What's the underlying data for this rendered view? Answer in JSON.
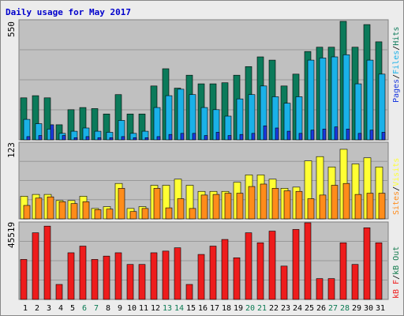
{
  "title": "Daily usage for May 2017",
  "colors": {
    "title": "#0000cc",
    "hits": "#0b7a5a",
    "files": "#1ab1e8",
    "pages": "#1a3adf",
    "visits": "#ffff33",
    "sites": "#ff8c1a",
    "kb_out": "#147c4e",
    "kb_f": "#ee1c1c",
    "weekend_day": "#0a7a52",
    "weekday_day": "#000000",
    "panel_bg": "#c0c0c0",
    "frame_bg": "#ececec"
  },
  "legends": {
    "hits": "Hits",
    "files": "Files",
    "pages": "Pages",
    "sep1": "/",
    "sep2": "/",
    "visits": "Visits",
    "sites": "Sites",
    "kb_out": "kB Out",
    "kb_f": "kB F",
    "sep3": "/",
    "sep4": "/"
  },
  "chart_data": [
    {
      "type": "bar",
      "panel": "hits-files-pages",
      "ymax_label": "550",
      "ylim": [
        0,
        550
      ],
      "categories": [
        "1",
        "2",
        "3",
        "4",
        "5",
        "6",
        "7",
        "8",
        "9",
        "10",
        "11",
        "12",
        "13",
        "14",
        "15",
        "16",
        "17",
        "18",
        "19",
        "20",
        "21",
        "22",
        "23",
        "24",
        "25",
        "26",
        "27",
        "28",
        "29",
        "30",
        "31"
      ],
      "weekend_days": [
        "6",
        "7",
        "13",
        "14",
        "20",
        "21",
        "27",
        "28"
      ],
      "series": [
        {
          "name": "Hits",
          "values": [
            195,
            205,
            195,
            70,
            140,
            150,
            145,
            120,
            210,
            120,
            120,
            250,
            330,
            240,
            300,
            260,
            260,
            265,
            300,
            340,
            385,
            370,
            250,
            305,
            410,
            430,
            430,
            550,
            430,
            535,
            455
          ]
        },
        {
          "name": "Files",
          "values": [
            95,
            75,
            50,
            30,
            40,
            55,
            40,
            35,
            90,
            30,
            40,
            150,
            205,
            235,
            210,
            150,
            140,
            110,
            190,
            210,
            250,
            200,
            170,
            200,
            370,
            380,
            385,
            395,
            260,
            370,
            305
          ]
        },
        {
          "name": "Pages",
          "values": [
            15,
            20,
            70,
            20,
            10,
            15,
            10,
            10,
            15,
            10,
            10,
            15,
            25,
            30,
            30,
            20,
            35,
            20,
            25,
            30,
            65,
            55,
            40,
            30,
            45,
            50,
            60,
            50,
            30,
            45,
            35
          ]
        }
      ]
    },
    {
      "type": "bar",
      "panel": "visits-sites",
      "ymax_label": "123",
      "ylim": [
        0,
        123
      ],
      "categories": [
        "1",
        "2",
        "3",
        "4",
        "5",
        "6",
        "7",
        "8",
        "9",
        "10",
        "11",
        "12",
        "13",
        "14",
        "15",
        "16",
        "17",
        "18",
        "19",
        "20",
        "21",
        "22",
        "23",
        "24",
        "25",
        "26",
        "27",
        "28",
        "29",
        "30",
        "31"
      ],
      "series": [
        {
          "name": "Visits",
          "values": [
            37,
            40,
            40,
            30,
            30,
            37,
            17,
            20,
            58,
            17,
            20,
            55,
            55,
            65,
            55,
            45,
            45,
            45,
            60,
            72,
            72,
            65,
            50,
            52,
            95,
            102,
            85,
            114,
            90,
            100,
            85
          ]
        },
        {
          "name": "Sites",
          "values": [
            22,
            34,
            36,
            28,
            25,
            28,
            15,
            16,
            50,
            12,
            17,
            50,
            18,
            33,
            17,
            39,
            40,
            42,
            42,
            53,
            57,
            50,
            46,
            45,
            33,
            39,
            55,
            58,
            40,
            42,
            42
          ]
        }
      ]
    },
    {
      "type": "bar",
      "panel": "kbout-kbf",
      "ymax_label": "45519",
      "ylim": [
        0,
        45519
      ],
      "categories": [
        "1",
        "2",
        "3",
        "4",
        "5",
        "6",
        "7",
        "8",
        "9",
        "10",
        "11",
        "12",
        "13",
        "14",
        "15",
        "16",
        "17",
        "18",
        "19",
        "20",
        "21",
        "22",
        "23",
        "24",
        "25",
        "26",
        "27",
        "28",
        "29",
        "30",
        "31"
      ],
      "series": [
        {
          "name": "kB F",
          "values": [
            24000,
            40000,
            44000,
            9000,
            28000,
            32000,
            24000,
            26000,
            28000,
            21000,
            21000,
            28000,
            29000,
            31000,
            9000,
            27000,
            32000,
            36000,
            25000,
            40000,
            34000,
            41000,
            20000,
            42000,
            46000,
            12500,
            12500,
            34000,
            21000,
            43000,
            34000
          ]
        }
      ]
    }
  ]
}
